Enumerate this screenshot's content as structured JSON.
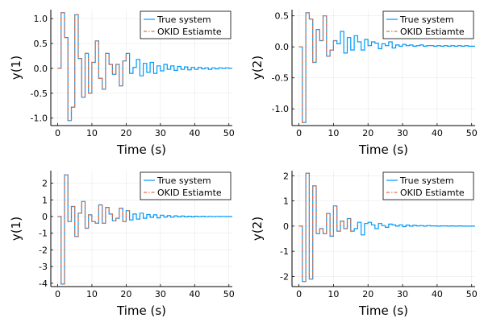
{
  "chart_data": [
    {
      "type": "line",
      "step": true,
      "xlabel": "Time (s)",
      "ylabel": "y(1)",
      "xlim": [
        -2,
        51
      ],
      "ylim": [
        -1.15,
        1.18
      ],
      "xticks": [
        0,
        10,
        20,
        30,
        40,
        50
      ],
      "yticks": [
        -1.0,
        -0.5,
        0.0,
        0.5,
        1.0
      ],
      "ytick_labels": [
        "-1.0",
        "-0.5",
        "0.0",
        "0.5",
        "1.0"
      ],
      "grid": true,
      "legend_position": "top-right",
      "series": [
        {
          "name": "True system",
          "color": "#009af9",
          "dash": "solid",
          "x": [
            0,
            1,
            2,
            3,
            4,
            5,
            6,
            7,
            8,
            9,
            10,
            11,
            12,
            13,
            14,
            15,
            16,
            17,
            18,
            19,
            20,
            21,
            22,
            23,
            24,
            25,
            26,
            27,
            28,
            29,
            30,
            31,
            32,
            33,
            34,
            35,
            36,
            37,
            38,
            39,
            40,
            41,
            42,
            43,
            44,
            45,
            46,
            47,
            48,
            49,
            50
          ],
          "y": [
            0,
            1.12,
            0.62,
            -1.05,
            -0.78,
            1.08,
            0.2,
            -0.58,
            0.3,
            -0.5,
            0.12,
            0.55,
            -0.2,
            -0.42,
            0.3,
            0.08,
            -0.12,
            0.08,
            -0.35,
            0.15,
            0.3,
            -0.1,
            0.02,
            0.18,
            -0.15,
            0.1,
            -0.08,
            0.12,
            -0.1,
            0.05,
            -0.05,
            0.08,
            -0.02,
            0.05,
            -0.04,
            0.04,
            -0.02,
            0.03,
            -0.03,
            0.02,
            -0.02,
            0.02,
            -0.01,
            0.01,
            -0.02,
            0.01,
            -0.01,
            0.01,
            0,
            0.01,
            0
          ]
        },
        {
          "name": "OKID Estiamte",
          "color": "#e26f46",
          "dash": "dashdot",
          "x": [
            0,
            1,
            2,
            3,
            4,
            5,
            6,
            7,
            8,
            9,
            10,
            11,
            12,
            13,
            14,
            15,
            16,
            17,
            18,
            19,
            20
          ],
          "y": [
            0,
            1.12,
            0.62,
            -1.05,
            -0.78,
            1.08,
            0.2,
            -0.58,
            0.3,
            -0.5,
            0.12,
            0.55,
            -0.2,
            -0.42,
            0.3,
            0.08,
            -0.12,
            0.08,
            -0.35,
            0.15,
            0.3
          ]
        }
      ]
    },
    {
      "type": "line",
      "step": true,
      "xlabel": "Time (s)",
      "ylabel": "y(2)",
      "xlim": [
        -2,
        51
      ],
      "ylim": [
        -1.27,
        0.6
      ],
      "xticks": [
        0,
        10,
        20,
        30,
        40,
        50
      ],
      "yticks": [
        -1.0,
        -0.5,
        0.0,
        0.5
      ],
      "ytick_labels": [
        "-1.0",
        "-0.5",
        "0.0",
        "0.5"
      ],
      "grid": true,
      "legend_position": "top-right",
      "series": [
        {
          "name": "True system",
          "color": "#009af9",
          "dash": "solid",
          "x": [
            0,
            1,
            2,
            3,
            4,
            5,
            6,
            7,
            8,
            9,
            10,
            11,
            12,
            13,
            14,
            15,
            16,
            17,
            18,
            19,
            20,
            21,
            22,
            23,
            24,
            25,
            26,
            27,
            28,
            29,
            30,
            31,
            32,
            33,
            34,
            35,
            36,
            37,
            38,
            39,
            40,
            41,
            42,
            43,
            44,
            45,
            46,
            47,
            48,
            49,
            50
          ],
          "y": [
            0,
            -1.22,
            0.55,
            0.45,
            -0.25,
            0.28,
            0.1,
            0.5,
            -0.15,
            -0.05,
            0.1,
            0.05,
            0.25,
            -0.1,
            0.15,
            -0.05,
            0.18,
            0.08,
            -0.05,
            0.12,
            0.02,
            0.08,
            0.06,
            -0.03,
            0.05,
            0.02,
            0.08,
            -0.02,
            0.03,
            0.01,
            0.04,
            0.02,
            0.03,
            0.01,
            0.02,
            0.03,
            0.01,
            0.02,
            0.02,
            0.01,
            0.02,
            0.01,
            0.02,
            0.01,
            0.02,
            0.01,
            0.02,
            0.01,
            0.02,
            0.01,
            0.01
          ]
        },
        {
          "name": "OKID Estiamte",
          "color": "#e26f46",
          "dash": "dashdot",
          "x": [
            0,
            1,
            2,
            3,
            4,
            5,
            6,
            7,
            8,
            9,
            10
          ],
          "y": [
            0,
            -1.22,
            0.55,
            0.45,
            -0.25,
            0.28,
            0.1,
            0.5,
            -0.15,
            -0.05,
            0.1
          ]
        }
      ]
    },
    {
      "type": "line",
      "step": true,
      "xlabel": "Time (s)",
      "ylabel": "y(1)",
      "xlim": [
        -2,
        51
      ],
      "ylim": [
        -4.2,
        2.75
      ],
      "xticks": [
        0,
        10,
        20,
        30,
        40,
        50
      ],
      "yticks": [
        -4,
        -3,
        -2,
        -1,
        0,
        1,
        2
      ],
      "ytick_labels": [
        "-4",
        "-3",
        "-2",
        "-1",
        "0",
        "1",
        "2"
      ],
      "grid": true,
      "legend_position": "top-right",
      "series": [
        {
          "name": "True system",
          "color": "#009af9",
          "dash": "solid",
          "x": [
            0,
            1,
            2,
            3,
            4,
            5,
            6,
            7,
            8,
            9,
            10,
            11,
            12,
            13,
            14,
            15,
            16,
            17,
            18,
            19,
            20,
            21,
            22,
            23,
            24,
            25,
            26,
            27,
            28,
            29,
            30,
            31,
            32,
            33,
            34,
            35,
            36,
            37,
            38,
            39,
            40,
            41,
            42,
            43,
            44,
            45,
            46,
            47,
            48,
            49,
            50
          ],
          "y": [
            0,
            -4.05,
            2.5,
            -0.3,
            0.6,
            -1.2,
            0.2,
            0.9,
            -0.7,
            0.1,
            -0.3,
            -0.4,
            0.7,
            -0.4,
            0.55,
            0.15,
            -0.25,
            -0.1,
            0.5,
            -0.3,
            0.35,
            -0.2,
            0.15,
            -0.15,
            0.2,
            -0.1,
            0.12,
            -0.05,
            0.1,
            -0.08,
            0.08,
            -0.03,
            0.05,
            -0.04,
            0.04,
            -0.02,
            0.03,
            -0.02,
            0.02,
            -0.02,
            0.02,
            -0.01,
            0.02,
            -0.01,
            0.01,
            -0.01,
            0.01,
            0,
            0.01,
            0,
            0
          ]
        },
        {
          "name": "OKID Estiamte",
          "color": "#e26f46",
          "dash": "dashdot",
          "x": [
            0,
            1,
            2,
            3,
            4,
            5,
            6,
            7,
            8,
            9,
            10,
            11,
            12,
            13,
            14,
            15,
            16,
            17,
            18,
            19,
            20
          ],
          "y": [
            0,
            -4.05,
            2.5,
            -0.3,
            0.6,
            -1.2,
            0.2,
            0.9,
            -0.7,
            0.1,
            -0.3,
            -0.4,
            0.7,
            -0.4,
            0.55,
            0.15,
            -0.25,
            -0.1,
            0.5,
            -0.3,
            0.35
          ]
        }
      ]
    },
    {
      "type": "line",
      "step": true,
      "xlabel": "Time (s)",
      "ylabel": "y(2)",
      "xlim": [
        -2,
        51
      ],
      "ylim": [
        -2.4,
        2.2
      ],
      "xticks": [
        0,
        10,
        20,
        30,
        40,
        50
      ],
      "yticks": [
        -2,
        -1,
        0,
        1,
        2
      ],
      "ytick_labels": [
        "-2",
        "-1",
        "0",
        "1",
        "2"
      ],
      "grid": true,
      "legend_position": "top-right",
      "series": [
        {
          "name": "True system",
          "color": "#009af9",
          "dash": "solid",
          "x": [
            0,
            1,
            2,
            3,
            4,
            5,
            6,
            7,
            8,
            9,
            10,
            11,
            12,
            13,
            14,
            15,
            16,
            17,
            18,
            19,
            20,
            21,
            22,
            23,
            24,
            25,
            26,
            27,
            28,
            29,
            30,
            31,
            32,
            33,
            34,
            35,
            36,
            37,
            38,
            39,
            40,
            41,
            42,
            43,
            44,
            45,
            46,
            47,
            48,
            49,
            50
          ],
          "y": [
            0,
            -2.2,
            2.1,
            -2.1,
            1.6,
            -0.3,
            -0.1,
            -0.3,
            0.5,
            -0.4,
            0.8,
            -0.2,
            0.2,
            -0.1,
            0.3,
            -0.2,
            -0.1,
            0.15,
            -0.35,
            0.1,
            0.15,
            0.05,
            -0.1,
            0.1,
            0.02,
            -0.05,
            0.08,
            0.05,
            0,
            0.05,
            -0.02,
            0.04,
            0,
            0.03,
            0.01,
            0.02,
            0,
            0.02,
            0.01,
            0.01,
            0,
            0.01,
            0.01,
            0,
            0.01,
            0,
            0.01,
            0,
            0,
            0,
            0
          ]
        },
        {
          "name": "OKID Estiamte",
          "color": "#e26f46",
          "dash": "dashdot",
          "x": [
            0,
            1,
            2,
            3,
            4,
            5,
            6,
            7,
            8,
            9,
            10,
            11,
            12,
            13,
            14,
            15
          ],
          "y": [
            0,
            -2.2,
            2.1,
            -2.1,
            1.6,
            -0.3,
            -0.1,
            -0.3,
            0.5,
            -0.4,
            0.8,
            -0.2,
            0.2,
            -0.1,
            0.3,
            -0.2
          ]
        }
      ]
    }
  ]
}
